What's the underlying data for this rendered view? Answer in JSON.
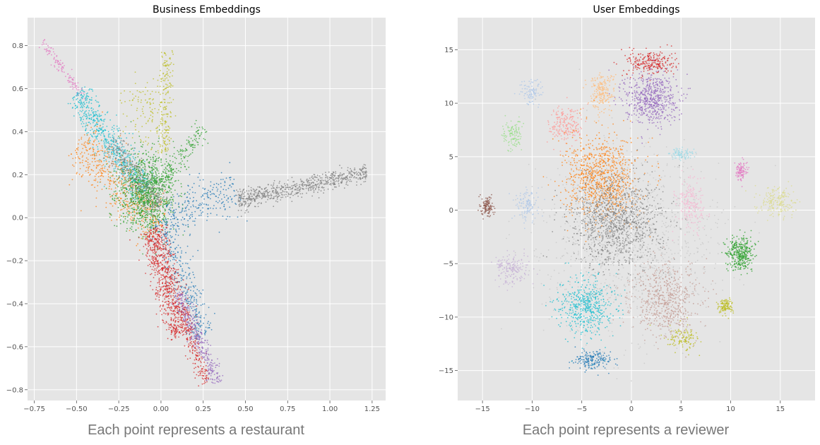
{
  "chart_data": [
    {
      "type": "scatter",
      "title": "Business Embeddings",
      "caption": "Each point represents a restaurant",
      "xlim": [
        -0.79,
        1.33
      ],
      "ylim": [
        -0.85,
        0.93
      ],
      "xticks": [
        -0.75,
        -0.5,
        -0.25,
        0.0,
        0.25,
        0.5,
        0.75,
        1.0,
        1.25
      ],
      "xtick_labels": [
        "−0.75",
        "−0.50",
        "−0.25",
        "0.00",
        "0.25",
        "0.50",
        "0.75",
        "1.00",
        "1.25"
      ],
      "yticks": [
        -0.8,
        -0.6,
        -0.4,
        -0.2,
        0.0,
        0.2,
        0.4,
        0.6,
        0.8
      ],
      "ytick_labels": [
        "−0.8",
        "−0.6",
        "−0.4",
        "−0.2",
        "0.0",
        "0.2",
        "0.4",
        "0.6",
        "0.8"
      ],
      "grid": true,
      "clusters": [
        {
          "color": "#e377c2",
          "shape": "line",
          "from": [
            -0.7,
            0.82
          ],
          "to": [
            -0.45,
            0.55
          ],
          "width": 0.025,
          "n": 120
        },
        {
          "color": "#17becf",
          "shape": "line",
          "from": [
            -0.5,
            0.58
          ],
          "to": [
            -0.1,
            0.12
          ],
          "width": 0.08,
          "n": 650
        },
        {
          "color": "#ff7f0e",
          "shape": "line",
          "from": [
            -0.5,
            0.35
          ],
          "to": [
            0.0,
            -0.05
          ],
          "width": 0.12,
          "n": 520
        },
        {
          "color": "#bcbd22",
          "shape": "line",
          "from": [
            0.04,
            0.78
          ],
          "to": [
            0.02,
            0.3
          ],
          "width": 0.04,
          "n": 180
        },
        {
          "color": "#bcbd22",
          "shape": "blob",
          "center": [
            -0.07,
            0.5
          ],
          "spread": [
            0.12,
            0.15
          ],
          "n": 120
        },
        {
          "color": "#2ca02c",
          "shape": "blob",
          "center": [
            -0.08,
            0.12
          ],
          "spread": [
            0.14,
            0.15
          ],
          "n": 1100
        },
        {
          "color": "#2ca02c",
          "shape": "line",
          "from": [
            0.0,
            0.15
          ],
          "to": [
            0.25,
            0.42
          ],
          "width": 0.05,
          "n": 150
        },
        {
          "color": "#7f7f7f",
          "shape": "line",
          "from": [
            -0.3,
            0.35
          ],
          "to": [
            0.0,
            0.05
          ],
          "width": 0.07,
          "n": 300
        },
        {
          "color": "#7f7f7f",
          "shape": "line",
          "from": [
            0.45,
            0.08
          ],
          "to": [
            1.22,
            0.21
          ],
          "width": 0.045,
          "n": 700
        },
        {
          "color": "#1f77b4",
          "shape": "line",
          "from": [
            0.05,
            0.0
          ],
          "to": [
            0.45,
            0.15
          ],
          "width": 0.1,
          "n": 250
        },
        {
          "color": "#1f77b4",
          "shape": "line",
          "from": [
            0.0,
            0.0
          ],
          "to": [
            0.25,
            -0.55
          ],
          "width": 0.08,
          "n": 350
        },
        {
          "color": "#d62728",
          "shape": "line",
          "from": [
            -0.05,
            -0.05
          ],
          "to": [
            0.12,
            -0.55
          ],
          "width": 0.08,
          "n": 800
        },
        {
          "color": "#d62728",
          "shape": "line",
          "from": [
            0.12,
            -0.4
          ],
          "to": [
            0.26,
            -0.77
          ],
          "width": 0.04,
          "n": 200
        },
        {
          "color": "#9467bd",
          "shape": "line",
          "from": [
            0.1,
            -0.35
          ],
          "to": [
            0.34,
            -0.77
          ],
          "width": 0.04,
          "n": 300
        }
      ]
    },
    {
      "type": "scatter",
      "title": "User Embeddings",
      "caption": "Each point represents a reviewer",
      "xlim": [
        -17.5,
        18.5
      ],
      "ylim": [
        -17.8,
        18.0
      ],
      "xticks": [
        -15,
        -10,
        -5,
        0,
        5,
        10,
        15
      ],
      "xtick_labels": [
        "−15",
        "−10",
        "−5",
        "0",
        "5",
        "10",
        "15"
      ],
      "yticks": [
        -15,
        -10,
        -5,
        0,
        5,
        10,
        15
      ],
      "ytick_labels": [
        "−15",
        "−10",
        "−5",
        "0",
        "5",
        "10",
        "15"
      ],
      "grid": true,
      "clusters": [
        {
          "color": "#d62728",
          "shape": "blob",
          "center": [
            2.0,
            13.8
          ],
          "spread": [
            2.0,
            1.0
          ],
          "n": 250
        },
        {
          "color": "#9467bd",
          "shape": "blob",
          "center": [
            2.0,
            10.5
          ],
          "spread": [
            2.2,
            2.0
          ],
          "n": 600
        },
        {
          "color": "#ffbb78",
          "shape": "blob",
          "center": [
            -3.0,
            11.0
          ],
          "spread": [
            1.1,
            1.6
          ],
          "n": 200
        },
        {
          "color": "#aec7e8",
          "shape": "blob",
          "center": [
            -10.0,
            11.0
          ],
          "spread": [
            1.0,
            1.0
          ],
          "n": 100
        },
        {
          "color": "#98df8a",
          "shape": "blob",
          "center": [
            -12.0,
            7.0
          ],
          "spread": [
            0.8,
            1.2
          ],
          "n": 120
        },
        {
          "color": "#ff9896",
          "shape": "blob",
          "center": [
            -6.5,
            8.0
          ],
          "spread": [
            1.5,
            1.5
          ],
          "n": 200
        },
        {
          "color": "#ff7f0e",
          "shape": "blob",
          "center": [
            -3.0,
            3.0
          ],
          "spread": [
            3.0,
            3.2
          ],
          "n": 900
        },
        {
          "color": "#7f7f7f",
          "shape": "blob",
          "center": [
            -1.5,
            -1.0
          ],
          "spread": [
            3.8,
            3.5
          ],
          "n": 1100
        },
        {
          "color": "#c7c7c7",
          "shape": "blob",
          "center": [
            0.0,
            -3.0
          ],
          "spread": [
            7.5,
            7.0
          ],
          "n": 1200
        },
        {
          "color": "#8c564b",
          "shape": "blob",
          "center": [
            -14.5,
            0.3
          ],
          "spread": [
            0.5,
            0.8
          ],
          "n": 120
        },
        {
          "color": "#aec7e8",
          "shape": "blob",
          "center": [
            -10.5,
            0.5
          ],
          "spread": [
            1.0,
            1.2
          ],
          "n": 120
        },
        {
          "color": "#c5b0d5",
          "shape": "blob",
          "center": [
            -12.0,
            -5.5
          ],
          "spread": [
            1.4,
            1.2
          ],
          "n": 180
        },
        {
          "color": "#17becf",
          "shape": "blob",
          "center": [
            -4.5,
            -9.0
          ],
          "spread": [
            2.3,
            2.3
          ],
          "n": 500
        },
        {
          "color": "#1f77b4",
          "shape": "blob",
          "center": [
            -3.8,
            -14.0
          ],
          "spread": [
            1.6,
            0.7
          ],
          "n": 180
        },
        {
          "color": "#c49c94",
          "shape": "blob",
          "center": [
            3.5,
            -8.5
          ],
          "spread": [
            2.8,
            2.8
          ],
          "n": 600
        },
        {
          "color": "#f7b6d2",
          "shape": "blob",
          "center": [
            6.0,
            0.5
          ],
          "spread": [
            1.2,
            2.0
          ],
          "n": 200
        },
        {
          "color": "#e377c2",
          "shape": "blob",
          "center": [
            11.0,
            3.6
          ],
          "spread": [
            0.5,
            0.8
          ],
          "n": 100
        },
        {
          "color": "#2ca02c",
          "shape": "blob",
          "center": [
            11.0,
            -4.0
          ],
          "spread": [
            1.1,
            1.3
          ],
          "n": 350
        },
        {
          "color": "#dbdb8d",
          "shape": "blob",
          "center": [
            14.8,
            0.8
          ],
          "spread": [
            1.5,
            1.2
          ],
          "n": 200
        },
        {
          "color": "#bcbd22",
          "shape": "blob",
          "center": [
            9.5,
            -9.0
          ],
          "spread": [
            0.6,
            0.6
          ],
          "n": 120
        },
        {
          "color": "#bcbd22",
          "shape": "blob",
          "center": [
            5.0,
            -12.0
          ],
          "spread": [
            1.5,
            1.0
          ],
          "n": 120
        },
        {
          "color": "#9edae5",
          "shape": "blob",
          "center": [
            5.0,
            5.2
          ],
          "spread": [
            1.0,
            0.5
          ],
          "n": 100
        }
      ]
    }
  ]
}
